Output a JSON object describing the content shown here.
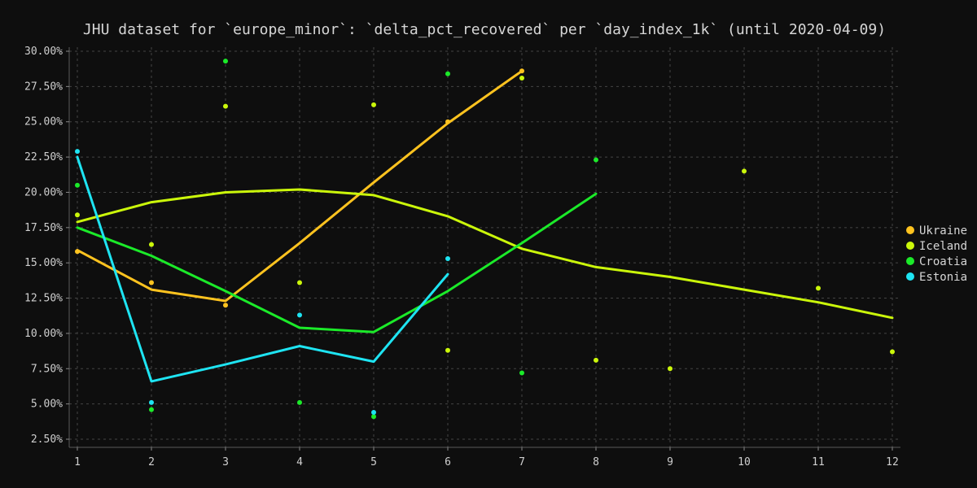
{
  "chart_data": {
    "type": "line",
    "title": "JHU dataset for `europe_minor`: `delta_pct_recovered` per `day_index_1k` (until 2020-04-09)",
    "xlabel": "",
    "ylabel": "",
    "xlim": [
      1,
      12
    ],
    "ylim": [
      2.5,
      30.0
    ],
    "x_ticks": [
      1,
      2,
      3,
      4,
      5,
      6,
      7,
      8,
      9,
      10,
      11,
      12
    ],
    "y_ticks": [
      "2.50%",
      "5.00%",
      "7.50%",
      "10.00%",
      "12.50%",
      "15.00%",
      "17.50%",
      "20.00%",
      "22.50%",
      "25.00%",
      "27.50%",
      "30.00%"
    ],
    "grid": true,
    "legend_position": "right",
    "background": "#0e0e0e",
    "series": [
      {
        "name": "Ukraine",
        "color": "#ffc31f",
        "points": [
          [
            1,
            15.8
          ],
          [
            2,
            13.6
          ],
          [
            3,
            12.0
          ],
          [
            6,
            25.0
          ],
          [
            7,
            28.6
          ]
        ],
        "trend": [
          [
            1,
            15.9
          ],
          [
            2,
            13.1
          ],
          [
            3,
            12.3
          ],
          [
            4,
            16.4
          ],
          [
            5,
            20.7
          ],
          [
            6,
            24.9
          ],
          [
            7,
            28.6
          ]
        ]
      },
      {
        "name": "Iceland",
        "color": "#cbf70a",
        "points": [
          [
            1,
            18.4
          ],
          [
            2,
            16.3
          ],
          [
            3,
            26.1
          ],
          [
            4,
            13.6
          ],
          [
            5,
            26.2
          ],
          [
            6,
            8.8
          ],
          [
            7,
            28.1
          ],
          [
            8,
            8.1
          ],
          [
            9,
            7.5
          ],
          [
            10,
            21.5
          ],
          [
            11,
            13.2
          ],
          [
            12,
            8.7
          ]
        ],
        "trend": [
          [
            1,
            17.9
          ],
          [
            2,
            19.3
          ],
          [
            3,
            20.0
          ],
          [
            4,
            20.2
          ],
          [
            5,
            19.8
          ],
          [
            6,
            18.3
          ],
          [
            7,
            16.0
          ],
          [
            8,
            14.7
          ],
          [
            9,
            14.0
          ],
          [
            10,
            13.1
          ],
          [
            11,
            12.2
          ],
          [
            12,
            11.1
          ]
        ]
      },
      {
        "name": "Croatia",
        "color": "#1bea29",
        "points": [
          [
            1,
            20.5
          ],
          [
            2,
            4.6
          ],
          [
            3,
            29.3
          ],
          [
            4,
            5.1
          ],
          [
            5,
            4.1
          ],
          [
            6,
            28.4
          ],
          [
            7,
            7.2
          ],
          [
            8,
            22.3
          ]
        ],
        "trend": [
          [
            1,
            17.5
          ],
          [
            2,
            15.5
          ],
          [
            3,
            13.0
          ],
          [
            4,
            10.4
          ],
          [
            5,
            10.1
          ],
          [
            6,
            13.0
          ],
          [
            7,
            16.4
          ],
          [
            8,
            19.9
          ]
        ]
      },
      {
        "name": "Estonia",
        "color": "#1ee4f2",
        "points": [
          [
            1,
            22.9
          ],
          [
            2,
            5.1
          ],
          [
            4,
            11.3
          ],
          [
            5,
            4.4
          ],
          [
            6,
            15.3
          ]
        ],
        "trend": [
          [
            1,
            22.5
          ],
          [
            2,
            6.6
          ],
          [
            3,
            7.8
          ],
          [
            4,
            9.1
          ],
          [
            5,
            8.0
          ],
          [
            6,
            14.2
          ]
        ]
      }
    ]
  }
}
